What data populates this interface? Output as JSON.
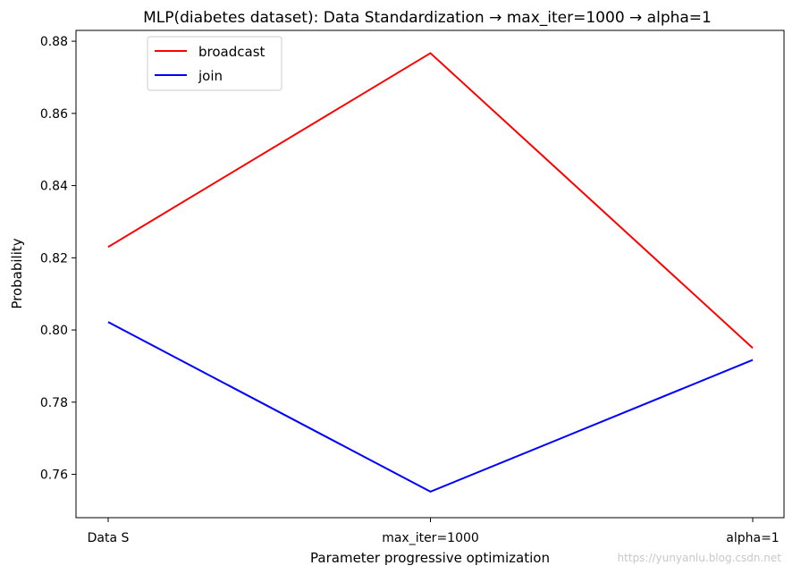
{
  "chart_data": {
    "type": "line",
    "title": "MLP(diabetes dataset): Data Standardization → max_iter=1000 → alpha=1",
    "xlabel": "Parameter progressive optimization",
    "ylabel": "Probability",
    "categories": [
      "Data S",
      "max_iter=1000",
      "alpha=1"
    ],
    "ylim": [
      0.748,
      0.883
    ],
    "yticks": [
      0.76,
      0.78,
      0.8,
      0.82,
      0.84,
      0.86,
      0.88
    ],
    "ytick_labels": [
      "0.76",
      "0.78",
      "0.80",
      "0.82",
      "0.84",
      "0.86",
      "0.88"
    ],
    "grid": false,
    "legend": "upper-left",
    "series": [
      {
        "name": "broadcast",
        "color": "#ff0000",
        "values": [
          0.823,
          0.8767,
          0.795
        ]
      },
      {
        "name": "join",
        "color": "#0000ff",
        "values": [
          0.8022,
          0.7552,
          0.7917
        ]
      }
    ]
  },
  "watermark": "https://yunyanlu.blog.csdn.net"
}
